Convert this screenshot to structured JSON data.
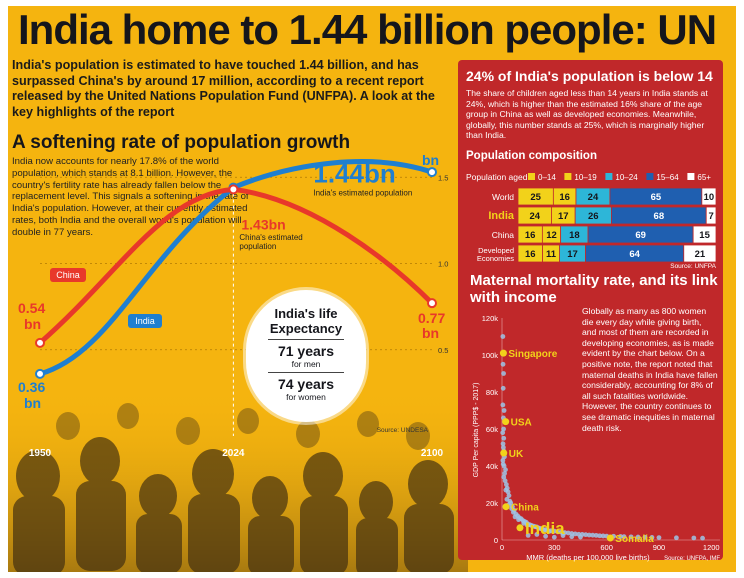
{
  "headline": "India home to 1.44 billion people: UN",
  "intro": "India's population is estimated to have touched 1.44 billion, and has surpassed China's by around 17 million, according to a recent report released by the United Nations Population Fund (UNFPA). A look at the key highlights of the report",
  "growth": {
    "title": "A softening rate of population growth",
    "text": "India now accounts for nearly 17.8% of the world population, which stands at 8.1 billion. However, the country's fertility rate has already fallen below the replacement level. This signals a softening in the rate of India's population. However, at their currently estimated rates, both India and the overall world's population will double in 77 years."
  },
  "life_expectancy": {
    "title": "India's life Expectancy",
    "men_value": "71 years",
    "men_label": "for men",
    "women_value": "74 years",
    "women_label": "for women"
  },
  "children": {
    "title": "24% of India's population is below 14",
    "text": "The share of children aged less than 14 years in India stands at 24%, which is higher than the estimated 16% share of the age group in China as well as developed economies. Meanwhile, globally, this number stands at 25%, which is marginally higher than India."
  },
  "maternal": {
    "title": "Maternal mortality rate, and its link with income",
    "text": "Globally as many as 800 women die every day while giving birth, and most of them are recorded in developing economies, as is made evident by the chart below. On a positive note, the report noted that maternal deaths in India have fallen considerably, accounting for 8% of all such fatalities worldwide. However, the country continues to see dramatic inequities in maternal death risk."
  },
  "colors": {
    "background": "#f5b40f",
    "panel": "#c0282a",
    "india": "#1f7fd0",
    "china": "#e8382a",
    "dark": "#15161c",
    "age_0_14": "#f2d21a",
    "age_10_19": "#f2d21a",
    "age_10_24": "#2db6d8",
    "age_15_64": "#1f5fb0",
    "age_65_plus": "#ffffff"
  },
  "chart_data": [
    {
      "type": "line",
      "x": [
        1950,
        2024,
        2100
      ],
      "x_tick_labels": [
        "1950",
        "2024",
        "2100"
      ],
      "y_tick_labels": [
        "0.5",
        "1.0",
        "1.5"
      ],
      "ylim": [
        0,
        1.6
      ],
      "series": [
        {
          "name": "India",
          "values": [
            0.36,
            1.44,
            1.53
          ],
          "start_label": "0.36 bn",
          "mid_label": "1.44bn",
          "mid_caption": "India's estimated population",
          "end_label": "1.53 bn"
        },
        {
          "name": "China",
          "values": [
            0.54,
            1.43,
            0.77
          ],
          "start_label": "0.54 bn",
          "mid_label": "1.43bn",
          "mid_caption": "China's estimated population",
          "end_label": "0.77 bn"
        }
      ],
      "source": "Source: UNDESA"
    },
    {
      "type": "bar",
      "title": "Population composition",
      "stacked": true,
      "row_label": "Population aged",
      "legend": [
        "0–14",
        "10–19",
        "10–24",
        "15–64",
        "65+"
      ],
      "categories": [
        "World",
        "India",
        "China",
        "Developed Economies"
      ],
      "series": [
        {
          "name": "0–14",
          "values": [
            25,
            24,
            16,
            16
          ]
        },
        {
          "name": "10–19",
          "values": [
            16,
            17,
            12,
            11
          ]
        },
        {
          "name": "10–24",
          "values": [
            24,
            26,
            18,
            17
          ]
        },
        {
          "name": "15–64",
          "values": [
            65,
            68,
            69,
            64
          ]
        },
        {
          "name": "65+",
          "values": [
            10,
            7,
            15,
            21
          ]
        }
      ],
      "source": "Source: UNFPA"
    },
    {
      "type": "scatter",
      "xlabel": "MMR (deaths per 100,000 live births)",
      "ylabel": "GDP Per capita (PPP$ - 2017)",
      "x_ticks": [
        "0",
        "300",
        "600",
        "900",
        "1200"
      ],
      "y_ticks": [
        "0",
        "20k",
        "40k",
        "60k",
        "80k",
        "100k",
        "120k"
      ],
      "xlim": [
        0,
        1250
      ],
      "ylim": [
        0,
        120000
      ],
      "labeled_points": [
        {
          "label": "Singapore",
          "x": 8,
          "y": 101000
        },
        {
          "label": "USA",
          "x": 21,
          "y": 64000
        },
        {
          "label": "UK",
          "x": 10,
          "y": 47000
        },
        {
          "label": "China",
          "x": 23,
          "y": 18000
        },
        {
          "label": "India",
          "x": 103,
          "y": 6600
        },
        {
          "label": "Somalia",
          "x": 621,
          "y": 1100
        }
      ],
      "points": [
        [
          5,
          110000
        ],
        [
          6,
          95000
        ],
        [
          9,
          90000
        ],
        [
          7,
          82000
        ],
        [
          5,
          73000
        ],
        [
          12,
          70000
        ],
        [
          8,
          66000
        ],
        [
          9,
          60000
        ],
        [
          4,
          58000
        ],
        [
          10,
          55000
        ],
        [
          6,
          52000
        ],
        [
          8,
          50000
        ],
        [
          11,
          48000
        ],
        [
          14,
          45000
        ],
        [
          5,
          43000
        ],
        [
          7,
          41000
        ],
        [
          12,
          40000
        ],
        [
          20,
          38000
        ],
        [
          15,
          36000
        ],
        [
          10,
          34000
        ],
        [
          18,
          32000
        ],
        [
          25,
          30000
        ],
        [
          30,
          28000
        ],
        [
          22,
          27000
        ],
        [
          35,
          26000
        ],
        [
          40,
          24000
        ],
        [
          28,
          22000
        ],
        [
          45,
          21000
        ],
        [
          50,
          20000
        ],
        [
          38,
          19000
        ],
        [
          60,
          18000
        ],
        [
          55,
          17000
        ],
        [
          70,
          16000
        ],
        [
          65,
          15000
        ],
        [
          80,
          14000
        ],
        [
          90,
          13000
        ],
        [
          75,
          12500
        ],
        [
          100,
          12000
        ],
        [
          110,
          11500
        ],
        [
          95,
          11000
        ],
        [
          120,
          10500
        ],
        [
          130,
          10000
        ],
        [
          140,
          9500
        ],
        [
          125,
          9000
        ],
        [
          150,
          8500
        ],
        [
          160,
          8200
        ],
        [
          145,
          8000
        ],
        [
          170,
          7800
        ],
        [
          180,
          7500
        ],
        [
          190,
          7200
        ],
        [
          200,
          7000
        ],
        [
          210,
          6500
        ],
        [
          220,
          6200
        ],
        [
          230,
          6000
        ],
        [
          250,
          5600
        ],
        [
          240,
          5400
        ],
        [
          260,
          5200
        ],
        [
          280,
          5000
        ],
        [
          300,
          4800
        ],
        [
          270,
          4600
        ],
        [
          320,
          4400
        ],
        [
          340,
          4200
        ],
        [
          360,
          4000
        ],
        [
          380,
          3800
        ],
        [
          350,
          3600
        ],
        [
          400,
          3500
        ],
        [
          420,
          3300
        ],
        [
          440,
          3100
        ],
        [
          460,
          3000
        ],
        [
          480,
          2900
        ],
        [
          500,
          2700
        ],
        [
          520,
          2600
        ],
        [
          540,
          2500
        ],
        [
          560,
          2300
        ],
        [
          580,
          2200
        ],
        [
          600,
          2100
        ],
        [
          640,
          2000
        ],
        [
          680,
          1900
        ],
        [
          700,
          1800
        ],
        [
          740,
          1700
        ],
        [
          780,
          1600
        ],
        [
          820,
          1500
        ],
        [
          860,
          1400
        ],
        [
          900,
          1300
        ],
        [
          1000,
          1200
        ],
        [
          1100,
          1100
        ],
        [
          1150,
          1000
        ],
        [
          150,
          2500
        ],
        [
          200,
          3000
        ],
        [
          250,
          2000
        ],
        [
          300,
          1500
        ],
        [
          350,
          2400
        ],
        [
          400,
          1800
        ],
        [
          450,
          1600
        ]
      ],
      "source": "Source: UNFPA, IMF"
    }
  ]
}
